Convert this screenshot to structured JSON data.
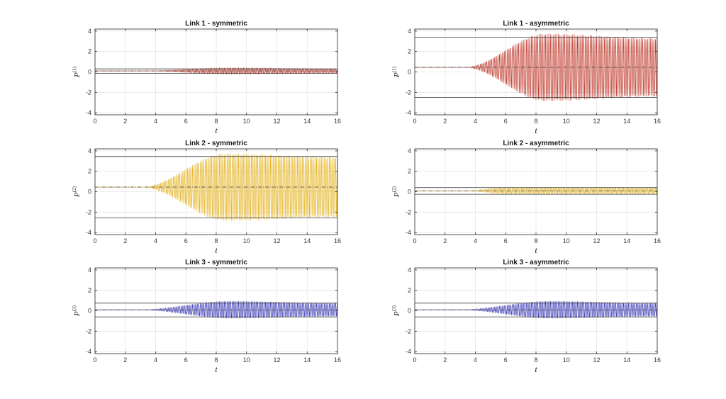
{
  "chart_data": [
    {
      "type": "line",
      "title": "Link 1 - symmetric",
      "xlabel": "t",
      "ylabel_base": "P",
      "ylabel_sup": "(1)",
      "xlim": [
        0,
        16
      ],
      "ylim": [
        -4.2,
        4.2
      ],
      "xticks": [
        0,
        2,
        4,
        6,
        8,
        10,
        12,
        14,
        16
      ],
      "yticks": [
        -4,
        -2,
        0,
        2,
        4
      ],
      "grid": true,
      "color": "#c0392b",
      "series": [
        {
          "onset": 3.2,
          "center": 0.1,
          "peak_amplitude": 0.3,
          "peak_time": 8.8,
          "final_amplitude": 0.2,
          "final_time": 16
        }
      ],
      "reference_lines": {
        "upper": 0.3,
        "lower": -0.15,
        "mean": 0.1
      }
    },
    {
      "type": "line",
      "title": "Link 1 - asymmetric",
      "xlabel": "t",
      "ylabel_base": "P",
      "ylabel_sup": "(1)",
      "xlim": [
        0,
        16
      ],
      "ylim": [
        -4.2,
        4.2
      ],
      "xticks": [
        0,
        2,
        4,
        6,
        8,
        10,
        12,
        14,
        16
      ],
      "yticks": [
        -4,
        -2,
        0,
        2,
        4
      ],
      "grid": true,
      "color": "#c0392b",
      "series": [
        {
          "onset": 3.3,
          "center": 0.45,
          "peak_amplitude": 3.3,
          "peak_time": 8.6,
          "final_amplitude": 2.85,
          "final_time": 16
        }
      ],
      "reference_lines": {
        "upper": 3.4,
        "lower": -2.5,
        "mean": 0.45
      }
    },
    {
      "type": "line",
      "title": "Link 2 - symmetric",
      "xlabel": "t",
      "ylabel_base": "P",
      "ylabel_sup": "(2)",
      "xlim": [
        0,
        16
      ],
      "ylim": [
        -4.2,
        4.2
      ],
      "xticks": [
        0,
        2,
        4,
        6,
        8,
        10,
        12,
        14,
        16
      ],
      "yticks": [
        -4,
        -2,
        0,
        2,
        4
      ],
      "grid": true,
      "color": "#e6b422",
      "series": [
        {
          "onset": 3.1,
          "center": 0.45,
          "peak_amplitude": 3.3,
          "peak_time": 8.6,
          "final_amplitude": 2.95,
          "final_time": 16
        }
      ],
      "reference_lines": {
        "upper": 3.45,
        "lower": -2.55,
        "mean": 0.45
      }
    },
    {
      "type": "line",
      "title": "Link 2 - asymmetric",
      "xlabel": "t",
      "ylabel_base": "P",
      "ylabel_sup": "(2)",
      "xlim": [
        0,
        16
      ],
      "ylim": [
        -4.2,
        4.2
      ],
      "xticks": [
        0,
        2,
        4,
        6,
        8,
        10,
        12,
        14,
        16
      ],
      "yticks": [
        -4,
        -2,
        0,
        2,
        4
      ],
      "grid": true,
      "color": "#e6b422",
      "series": [
        {
          "onset": 3.3,
          "center": 0.1,
          "peak_amplitude": 0.3,
          "peak_time": 6.0,
          "final_amplitude": 0.3,
          "final_time": 16
        }
      ],
      "reference_lines": {
        "upper": 0.4,
        "lower": -0.25,
        "mean": 0.1
      }
    },
    {
      "type": "line",
      "title": "Link 3 - symmetric",
      "xlabel": "t",
      "ylabel_base": "P",
      "ylabel_sup": "(3)",
      "xlim": [
        0,
        16
      ],
      "ylim": [
        -4.2,
        4.2
      ],
      "xticks": [
        0,
        2,
        4,
        6,
        8,
        10,
        12,
        14,
        16
      ],
      "yticks": [
        -4,
        -2,
        0,
        2,
        4
      ],
      "grid": true,
      "color": "#3a3ab8",
      "series": [
        {
          "onset": 3.0,
          "center": 0.1,
          "peak_amplitude": 0.85,
          "peak_time": 8.8,
          "final_amplitude": 0.65,
          "final_time": 16
        }
      ],
      "reference_lines": {
        "upper": 0.75,
        "lower": -0.6,
        "mean": 0.1
      }
    },
    {
      "type": "line",
      "title": "Link 3 - asymmetric",
      "xlabel": "t",
      "ylabel_base": "P",
      "ylabel_sup": "(3)",
      "xlim": [
        0,
        16
      ],
      "ylim": [
        -4.2,
        4.2
      ],
      "xticks": [
        0,
        2,
        4,
        6,
        8,
        10,
        12,
        14,
        16
      ],
      "yticks": [
        -4,
        -2,
        0,
        2,
        4
      ],
      "grid": true,
      "color": "#3a3ab8",
      "series": [
        {
          "onset": 3.0,
          "center": 0.1,
          "peak_amplitude": 0.85,
          "peak_time": 8.8,
          "final_amplitude": 0.65,
          "final_time": 16
        }
      ],
      "reference_lines": {
        "upper": 0.75,
        "lower": -0.6,
        "mean": 0.1
      }
    }
  ]
}
